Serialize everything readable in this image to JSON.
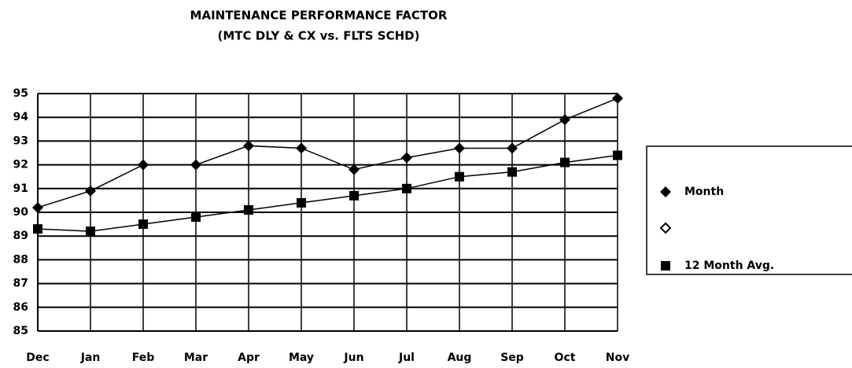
{
  "chart_data": {
    "type": "line",
    "title": "MAINTENANCE PERFORMANCE FACTOR",
    "subtitle": "(MTC DLY & CX  vs.  FLTS SCHD)",
    "categories": [
      "Dec",
      "Jan",
      "Feb",
      "Mar",
      "Apr",
      "May",
      "Jun",
      "Jul",
      "Aug",
      "Sep",
      "Oct",
      "Nov"
    ],
    "series": [
      {
        "name": "Month",
        "color": "#000000",
        "marker": "diamond",
        "values": [
          90.2,
          90.9,
          92.0,
          92.0,
          92.8,
          92.7,
          91.8,
          92.3,
          92.7,
          92.7,
          93.9,
          94.8
        ]
      },
      {
        "name": "12 Month Avg.",
        "color": "#000000",
        "marker": "square",
        "values": [
          89.3,
          89.2,
          89.5,
          89.8,
          90.1,
          90.4,
          90.7,
          91.0,
          91.5,
          91.7,
          92.1,
          92.4
        ]
      }
    ],
    "ylim": [
      85,
      95
    ],
    "yticks": [
      85,
      86,
      87,
      88,
      89,
      90,
      91,
      92,
      93,
      94,
      95
    ],
    "grid": true,
    "legend": "right"
  }
}
